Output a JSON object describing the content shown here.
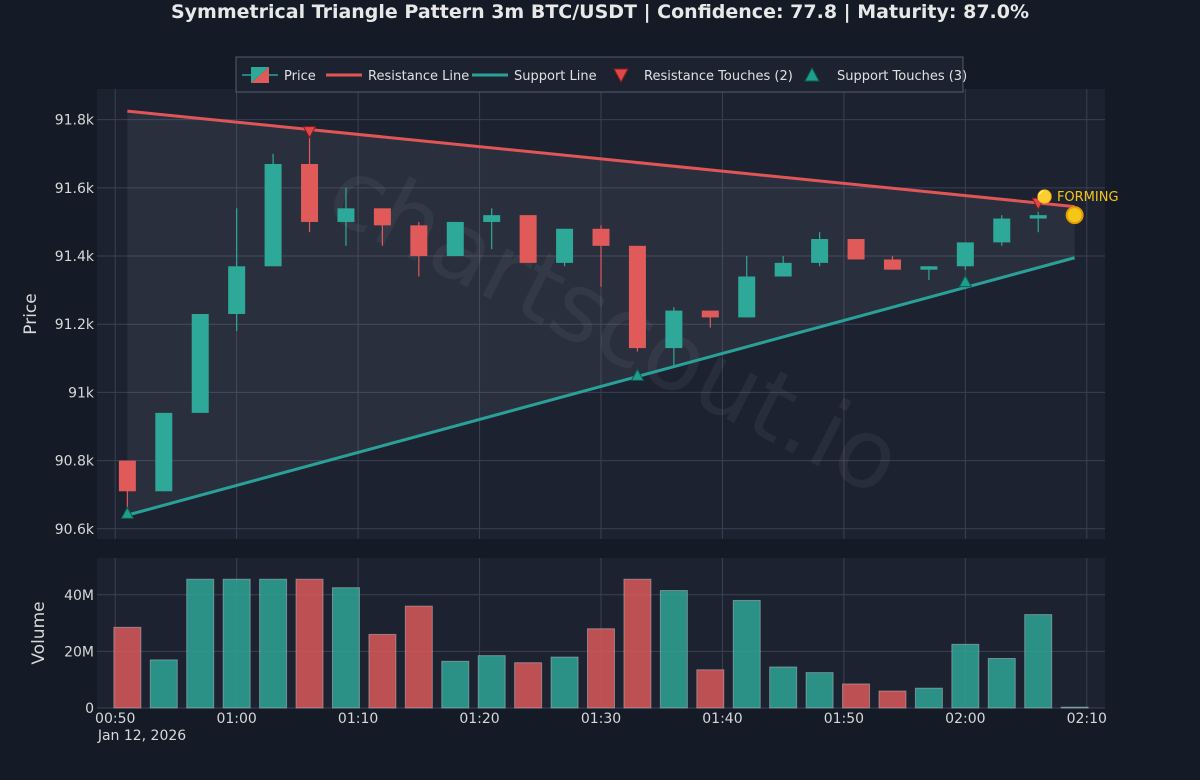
{
  "chart_data": {
    "type": "candlestick",
    "title": "Symmetrical Triangle Pattern 3m BTC/USDT | Confidence: 77.8 | Maturity: 87.0%",
    "watermark": "chartscout.io",
    "legend": {
      "placement": "top-center",
      "items": [
        {
          "label": "Price",
          "kind": "candle"
        },
        {
          "label": "Resistance Line",
          "kind": "line",
          "color": "#e05555"
        },
        {
          "label": "Support Line",
          "kind": "line",
          "color": "#2aa198"
        },
        {
          "label": "Resistance Touches (2)",
          "kind": "down-triangle",
          "color": "#e04848"
        },
        {
          "label": "Support Touches (3)",
          "kind": "up-triangle",
          "color": "#1f9e8c"
        }
      ]
    },
    "colors": {
      "up": "#2ea898",
      "down": "#e05a5a",
      "resistance": "#e05555",
      "support": "#2aa198",
      "forming": "#f5c518"
    },
    "price_axis": {
      "label": "Price",
      "range": [
        90570,
        91890
      ],
      "ticks": [
        90600,
        90800,
        91000,
        91200,
        91400,
        91600,
        91800
      ],
      "tick_labels": [
        "90.6k",
        "90.8k",
        "91k",
        "91.2k",
        "91.4k",
        "91.6k",
        "91.8k"
      ]
    },
    "volume_axis": {
      "label": "Volume",
      "range": [
        0,
        53
      ],
      "ticks": [
        0,
        20,
        40
      ],
      "tick_labels": [
        "0",
        "20M",
        "40M"
      ]
    },
    "time_axis": {
      "range": [
        48.5,
        131.5
      ],
      "ticks": [
        50,
        60,
        70,
        80,
        90,
        100,
        110,
        120,
        130
      ],
      "tick_labels": [
        "00:50",
        "01:00",
        "01:10",
        "01:20",
        "01:30",
        "01:40",
        "01:50",
        "02:00",
        "02:10"
      ],
      "date_label": "Jan 12, 2026"
    },
    "candles": [
      {
        "t": 51,
        "o": 90800,
        "h": 90800,
        "l": 90660,
        "c": 90710,
        "v": 28.5
      },
      {
        "t": 54,
        "o": 90710,
        "h": 90940,
        "l": 90710,
        "c": 90940,
        "v": 17
      },
      {
        "t": 57,
        "o": 90940,
        "h": 91230,
        "l": 90940,
        "c": 91230,
        "v": 45.5
      },
      {
        "t": 60,
        "o": 91230,
        "h": 91540,
        "l": 91180,
        "c": 91370,
        "v": 45.5
      },
      {
        "t": 63,
        "o": 91370,
        "h": 91700,
        "l": 91370,
        "c": 91670,
        "v": 45.5
      },
      {
        "t": 66,
        "o": 91670,
        "h": 91760,
        "l": 91470,
        "c": 91500,
        "v": 45.5
      },
      {
        "t": 69,
        "o": 91500,
        "h": 91600,
        "l": 91430,
        "c": 91540,
        "v": 42.5
      },
      {
        "t": 72,
        "o": 91540,
        "h": 91540,
        "l": 91430,
        "c": 91490,
        "v": 26
      },
      {
        "t": 75,
        "o": 91490,
        "h": 91500,
        "l": 91340,
        "c": 91400,
        "v": 36
      },
      {
        "t": 78,
        "o": 91400,
        "h": 91500,
        "l": 91400,
        "c": 91500,
        "v": 16.5
      },
      {
        "t": 81,
        "o": 91500,
        "h": 91540,
        "l": 91420,
        "c": 91520,
        "v": 18.5
      },
      {
        "t": 84,
        "o": 91520,
        "h": 91520,
        "l": 91380,
        "c": 91380,
        "v": 16
      },
      {
        "t": 87,
        "o": 91380,
        "h": 91480,
        "l": 91370,
        "c": 91480,
        "v": 18
      },
      {
        "t": 90,
        "o": 91480,
        "h": 91490,
        "l": 91310,
        "c": 91430,
        "v": 28
      },
      {
        "t": 93,
        "o": 91430,
        "h": 91430,
        "l": 91120,
        "c": 91130,
        "v": 45.5
      },
      {
        "t": 96,
        "o": 91130,
        "h": 91250,
        "l": 91080,
        "c": 91240,
        "v": 41.5
      },
      {
        "t": 99,
        "o": 91240,
        "h": 91240,
        "l": 91190,
        "c": 91220,
        "v": 13.5
      },
      {
        "t": 102,
        "o": 91220,
        "h": 91400,
        "l": 91220,
        "c": 91340,
        "v": 38
      },
      {
        "t": 105,
        "o": 91340,
        "h": 91400,
        "l": 91340,
        "c": 91380,
        "v": 14.5
      },
      {
        "t": 108,
        "o": 91380,
        "h": 91470,
        "l": 91370,
        "c": 91450,
        "v": 12.5
      },
      {
        "t": 111,
        "o": 91450,
        "h": 91450,
        "l": 91390,
        "c": 91390,
        "v": 8.5
      },
      {
        "t": 114,
        "o": 91390,
        "h": 91400,
        "l": 91360,
        "c": 91360,
        "v": 6
      },
      {
        "t": 117,
        "o": 91360,
        "h": 91370,
        "l": 91330,
        "c": 91370,
        "v": 7
      },
      {
        "t": 120,
        "o": 91370,
        "h": 91440,
        "l": 91360,
        "c": 91440,
        "v": 22.5
      },
      {
        "t": 123,
        "o": 91440,
        "h": 91520,
        "l": 91430,
        "c": 91510,
        "v": 17.5
      },
      {
        "t": 126,
        "o": 91510,
        "h": 91530,
        "l": 91470,
        "c": 91520,
        "v": 33
      },
      {
        "t": 129,
        "o": 91520,
        "h": 91520,
        "l": 91520,
        "c": 91520,
        "v": 0.3
      }
    ],
    "resistance_line": {
      "start": [
        51,
        91825
      ],
      "end": [
        129,
        91545
      ]
    },
    "support_line": {
      "start": [
        51,
        90640
      ],
      "end": [
        129,
        91395
      ]
    },
    "resistance_touches": [
      {
        "t": 66,
        "price": 91765
      },
      {
        "t": 126,
        "price": 91555
      }
    ],
    "support_touches": [
      {
        "t": 51,
        "price": 90645
      },
      {
        "t": 93,
        "price": 91050
      },
      {
        "t": 120,
        "price": 91325
      }
    ],
    "forming_point": {
      "t": 129,
      "price": 91520,
      "label": "🟡 FORMING"
    }
  }
}
